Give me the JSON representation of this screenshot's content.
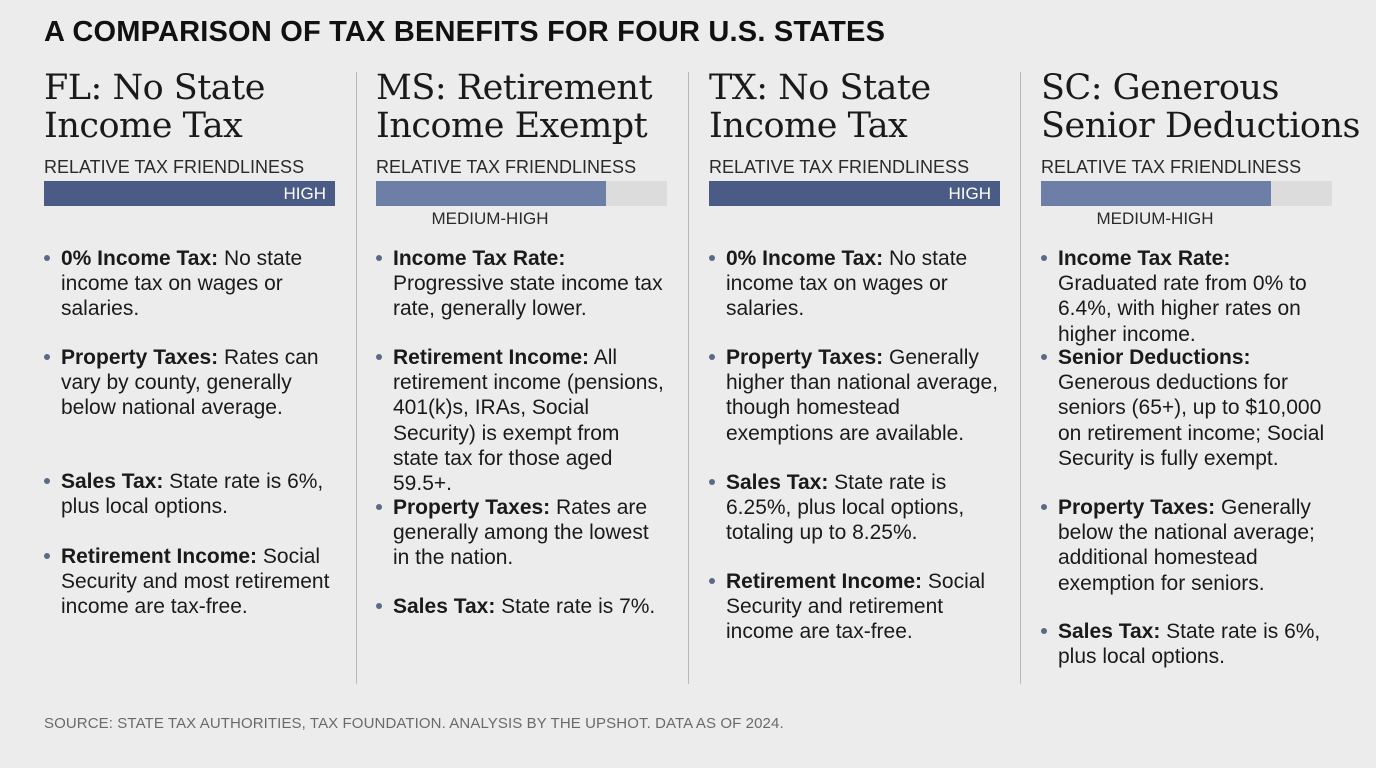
{
  "title": "A COMPARISON OF TAX BENEFITS FOR FOUR U.S. STATES",
  "friendliness_label": "RELATIVE TAX FRIENDLINESS",
  "accent_color": "#4a5b85",
  "states": [
    {
      "heading_line1": "FL: No State",
      "heading_line2": "Income Tax",
      "rating": "HIGH",
      "level": 1.0,
      "bullets": [
        {
          "label": "0% Income Tax:",
          "text": " No state income tax on wages or salaries."
        },
        {
          "label": "Property Taxes:",
          "text": " Rates can vary by county, generally below national average."
        },
        {
          "label": "Sales Tax:",
          "text": " State rate is 6%, plus local options."
        },
        {
          "label": "Retirement Income:",
          "text": " Social Security and most retirement income are tax-free."
        }
      ]
    },
    {
      "heading_line1": "MS: Retirement",
      "heading_line2": "Income Exempt",
      "rating": "MEDIUM-HIGH",
      "level": 0.79,
      "bullets": [
        {
          "label": "Income Tax Rate:",
          "text": " Progressive state income tax rate, generally lower."
        },
        {
          "label": "Retirement Income:",
          "text": " All retirement income (pensions, 401(k)s, IRAs, Social Security) is exempt from state tax for those aged 59.5+."
        },
        {
          "label": "Property Taxes:",
          "text": " Rates are generally among the lowest in the nation."
        },
        {
          "label": "Sales Tax:",
          "text": " State rate is 7%."
        }
      ]
    },
    {
      "heading_line1": "TX: No State",
      "heading_line2": "Income Tax",
      "rating": "HIGH",
      "level": 1.0,
      "bullets": [
        {
          "label": "0% Income Tax:",
          "text": " No state income tax on wages or salaries."
        },
        {
          "label": "Property Taxes:",
          "text": " Generally higher than national average, though homestead exemptions are available."
        },
        {
          "label": "Sales Tax:",
          "text": " State rate is 6.25%, plus local options, totaling up to 8.25%."
        },
        {
          "label": "Retirement Income:",
          "text": " Social Security and retirement income are tax-free."
        }
      ]
    },
    {
      "heading_line1": "SC: Generous",
      "heading_line2": "Senior Deductions",
      "rating": "MEDIUM-HIGH",
      "level": 0.79,
      "bullets": [
        {
          "label": "Income Tax Rate:",
          "text": " Graduated rate from 0% to 6.4%, with higher rates on higher income."
        },
        {
          "label": "Senior Deductions:",
          "text": " Generous deductions for seniors (65+), up to $10,000 on retirement income; Social Security is fully exempt."
        },
        {
          "label": "Property Taxes:",
          "text": " Generally below the national average; additional homestead exemption for seniors."
        },
        {
          "label": "Sales Tax:",
          "text": " State rate is 6%, plus local options."
        }
      ]
    }
  ],
  "source": "SOURCE: STATE TAX AUTHORITIES, TAX FOUNDATION. ANALYSIS BY THE UPSHOT. DATA AS OF 2024."
}
